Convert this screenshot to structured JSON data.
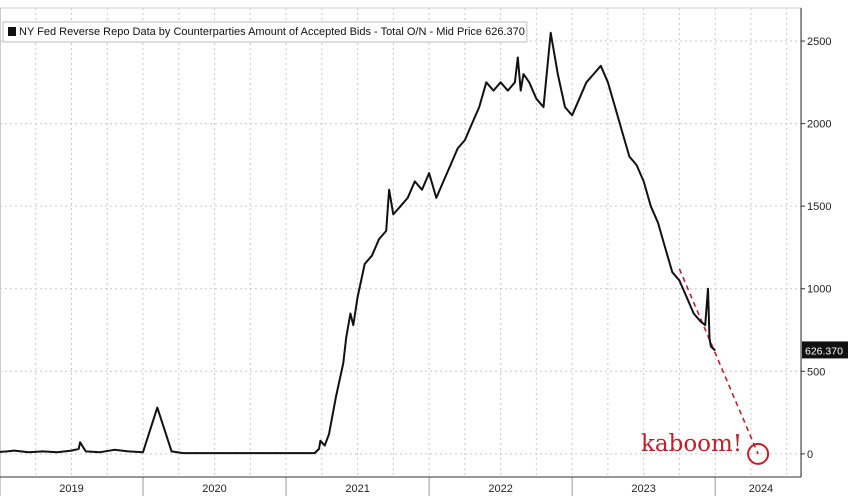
{
  "chart_data": {
    "type": "line",
    "title": "NY Fed Reverse Repo Data by Counterparties Amount of Accepted Bids - Total O/N - Mid Price 626.370",
    "legend_position": "top-left",
    "grid": true,
    "xlim": [
      2019.0,
      2024.6
    ],
    "ylim": [
      -140,
      2700
    ],
    "y_axis_side": "right",
    "yticks": [
      0,
      500,
      1000,
      1500,
      2000,
      2500
    ],
    "xtick_labels": [
      "2019",
      "2020",
      "2021",
      "2022",
      "2023",
      "2024"
    ],
    "last_value_label": "626.370",
    "last_value": 626.37,
    "annotation": {
      "text": "kaboom!",
      "color": "#c0202a"
    },
    "projection": {
      "from": [
        2023.75,
        1120
      ],
      "to": [
        2024.3,
        0
      ]
    },
    "colors": {
      "line": "#111111",
      "label_bg": "#111111",
      "label_text": "#ffffff",
      "annotation": "#c0202a"
    },
    "series": [
      {
        "x": [
          2018.97,
          2019.05,
          2019.1,
          2019.2,
          2019.3,
          2019.4,
          2019.5,
          2019.55,
          2019.56,
          2019.6,
          2019.7,
          2019.8,
          2019.9,
          2020.0,
          2020.1,
          2020.2,
          2020.28,
          2020.3,
          2020.32,
          2020.34,
          2020.4,
          2020.6,
          2020.8,
          2021.0,
          2021.1,
          2021.2,
          2021.23,
          2021.24,
          2021.27,
          2021.3,
          2021.35,
          2021.4,
          2021.42,
          2021.45,
          2021.47,
          2021.5,
          2021.55,
          2021.6,
          2021.65,
          2021.7,
          2021.72,
          2021.75,
          2021.8,
          2021.85,
          2021.9,
          2021.95,
          2022.0,
          2022.05,
          2022.1,
          2022.15,
          2022.2,
          2022.25,
          2022.3,
          2022.35,
          2022.4,
          2022.45,
          2022.5,
          2022.55,
          2022.6,
          2022.62,
          2022.64,
          2022.66,
          2022.7,
          2022.75,
          2022.8,
          2022.85,
          2022.9,
          2022.95,
          2023.0,
          2023.05,
          2023.1,
          2023.15,
          2023.2,
          2023.25,
          2023.3,
          2023.35,
          2023.4,
          2023.45,
          2023.5,
          2023.55,
          2023.6,
          2023.65,
          2023.7,
          2023.75,
          2023.8,
          2023.85,
          2023.9,
          2023.93,
          2023.95,
          2023.96,
          2023.97,
          2024.0
        ],
        "values": [
          10,
          15,
          20,
          10,
          15,
          10,
          20,
          30,
          70,
          15,
          10,
          25,
          15,
          10,
          280,
          15,
          5,
          5,
          5,
          5,
          5,
          5,
          5,
          5,
          5,
          5,
          30,
          80,
          50,
          120,
          350,
          550,
          700,
          850,
          780,
          950,
          1150,
          1200,
          1300,
          1350,
          1600,
          1450,
          1500,
          1550,
          1650,
          1600,
          1700,
          1550,
          1650,
          1750,
          1850,
          1900,
          2000,
          2100,
          2250,
          2200,
          2250,
          2200,
          2250,
          2400,
          2200,
          2300,
          2250,
          2150,
          2100,
          2550,
          2300,
          2100,
          2050,
          2150,
          2250,
          2300,
          2350,
          2250,
          2100,
          1950,
          1800,
          1750,
          1650,
          1500,
          1400,
          1250,
          1100,
          1050,
          950,
          850,
          800,
          780,
          1000,
          700,
          650,
          626
        ]
      }
    ]
  }
}
